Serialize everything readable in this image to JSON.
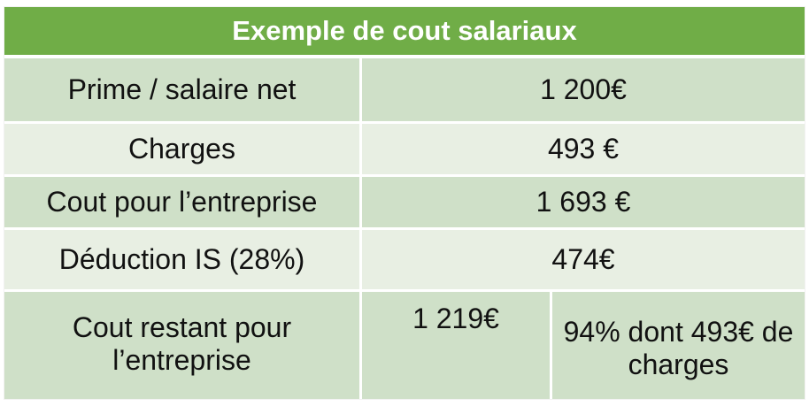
{
  "table": {
    "title": "Exemple de cout salariaux",
    "rows": [
      {
        "label": "Prime / salaire net",
        "value": "1 200€"
      },
      {
        "label": "Charges",
        "value": "493 €"
      },
      {
        "label": "Cout pour l’entreprise",
        "value": "1 693 €"
      },
      {
        "label": "Déduction IS (28%)",
        "value": "474€"
      }
    ],
    "last_row": {
      "label": "Cout restant pour l’entreprise",
      "value": "1 219€",
      "note": "94% dont 493€ de charges"
    }
  },
  "colors": {
    "header": "#70ad47",
    "row_odd": "#cfe0c8",
    "row_even": "#e8efe3"
  }
}
